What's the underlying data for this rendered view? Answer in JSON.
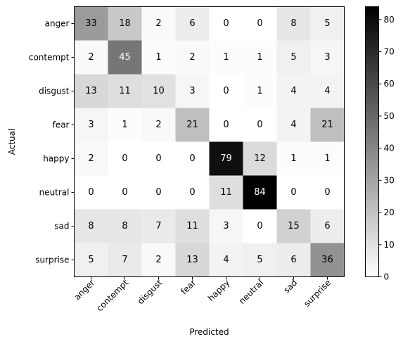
{
  "chart_data": {
    "type": "heatmap",
    "title": "",
    "xlabel": "Predicted",
    "ylabel": "Actual",
    "x_categories": [
      "anger",
      "contempt",
      "disgust",
      "fear",
      "happy",
      "neutral",
      "sad",
      "surprise"
    ],
    "y_categories": [
      "anger",
      "contempt",
      "disgust",
      "fear",
      "happy",
      "neutral",
      "sad",
      "surprise"
    ],
    "values": [
      [
        33,
        18,
        2,
        6,
        0,
        0,
        8,
        5
      ],
      [
        2,
        45,
        1,
        2,
        1,
        1,
        5,
        3
      ],
      [
        13,
        11,
        10,
        3,
        0,
        1,
        4,
        4
      ],
      [
        3,
        1,
        2,
        21,
        0,
        0,
        4,
        21
      ],
      [
        2,
        0,
        0,
        0,
        79,
        12,
        1,
        1
      ],
      [
        0,
        0,
        0,
        0,
        11,
        84,
        0,
        0
      ],
      [
        8,
        8,
        7,
        11,
        3,
        0,
        15,
        6
      ],
      [
        5,
        7,
        2,
        13,
        4,
        5,
        6,
        36
      ]
    ],
    "colormap": "grays",
    "colorbar": {
      "min": 0,
      "max": 84,
      "ticks": [
        0,
        10,
        20,
        30,
        40,
        50,
        60,
        70,
        80
      ]
    },
    "x_tick_rotation_deg": 45,
    "grid": false
  }
}
